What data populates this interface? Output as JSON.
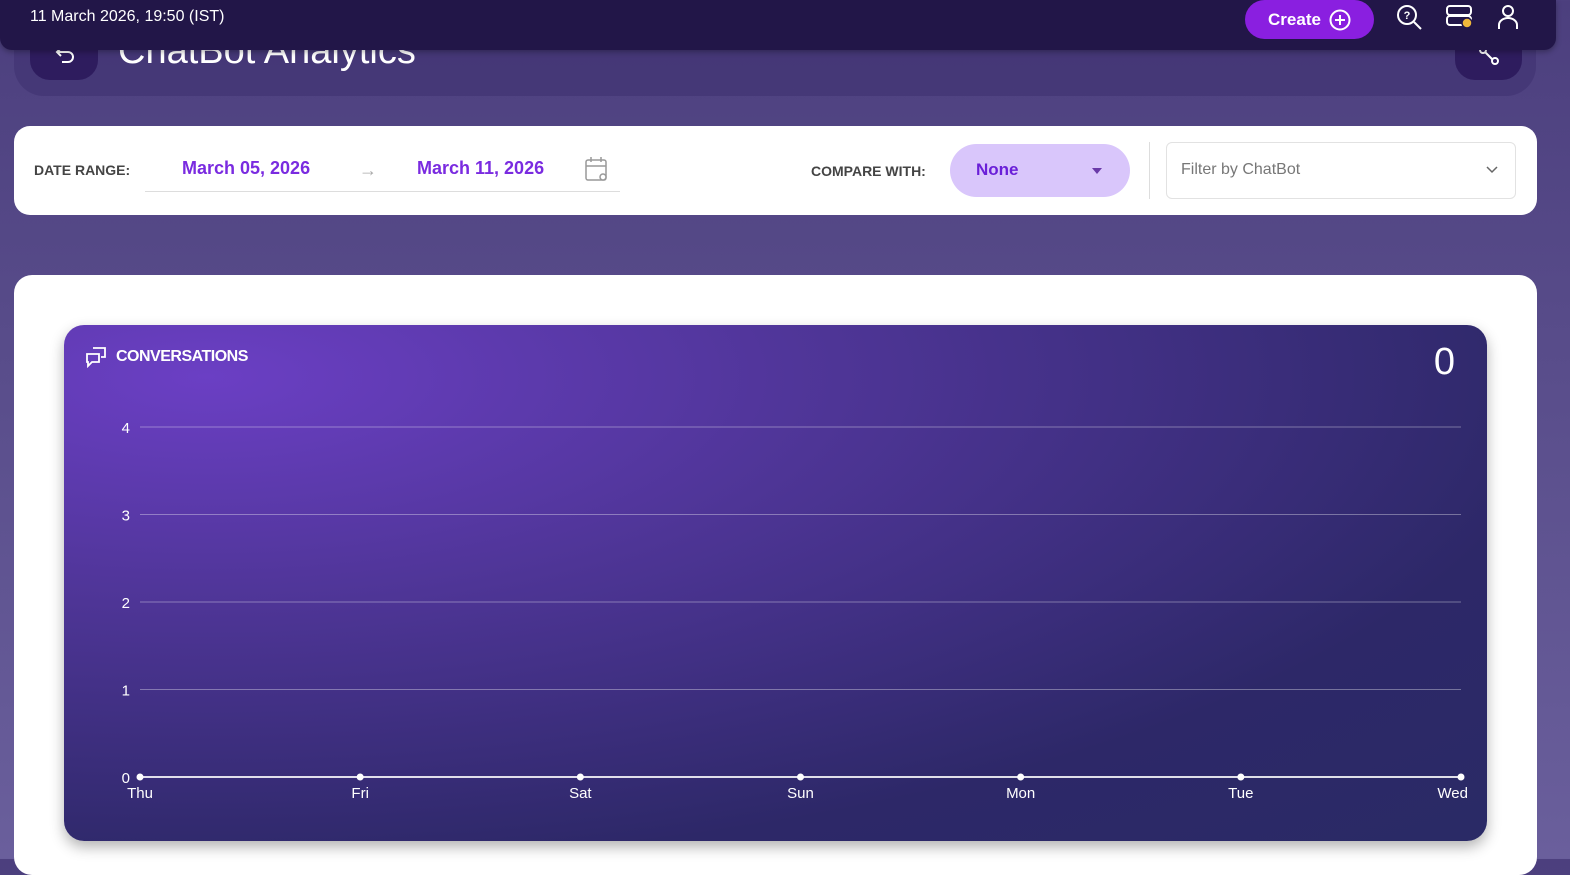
{
  "topbar": {
    "datetime": "11 March 2026, 19:50 (IST)",
    "create_label": "Create"
  },
  "header": {
    "title": "ChatBot Analytics"
  },
  "filters": {
    "date_range_label": "DATE RANGE:",
    "start_date": "March 05, 2026",
    "end_date": "March 11, 2026",
    "compare_label": "COMPARE WITH:",
    "compare_value": "None",
    "chatbot_placeholder": "Filter by ChatBot"
  },
  "colors": {
    "accent": "#8a1fe0",
    "topbar": "#221648",
    "compare_bg": "#d9c6fb",
    "status_dot": "#f0b73a"
  },
  "chart_data": {
    "type": "line",
    "title": "CONVERSATIONS",
    "total": "0",
    "categories": [
      "Thu",
      "Fri",
      "Sat",
      "Sun",
      "Mon",
      "Tue",
      "Wed"
    ],
    "values": [
      0,
      0,
      0,
      0,
      0,
      0,
      0
    ],
    "ylim": [
      0,
      4
    ],
    "yticks": [
      0,
      1,
      2,
      3,
      4
    ],
    "grid": true
  }
}
